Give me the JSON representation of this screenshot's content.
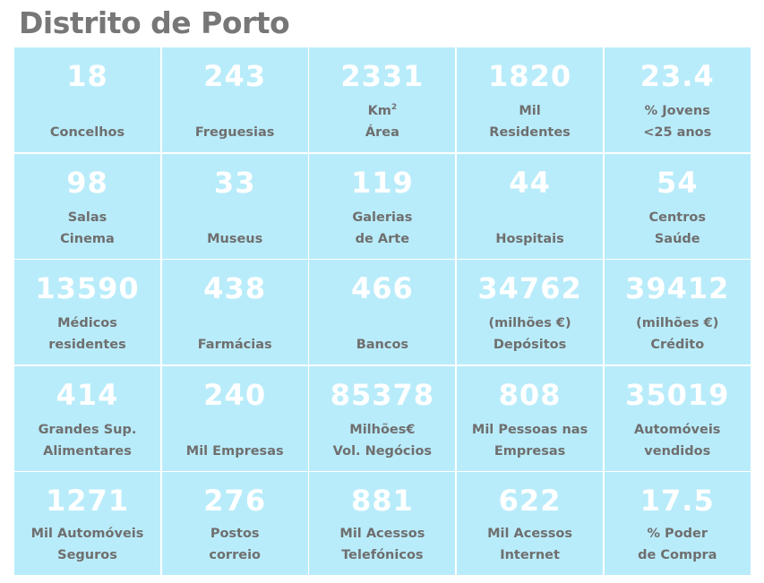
{
  "title": "Distrito de Porto",
  "cells": [
    {
      "value": "18",
      "line1": "",
      "line2": "Concelhos"
    },
    {
      "value": "243",
      "line1": "",
      "line2": "Freguesias"
    },
    {
      "value": "2331",
      "line1": "Km",
      "sup": "2",
      "line2": "Área"
    },
    {
      "value": "1820",
      "line1": "Mil",
      "line2": "Residentes"
    },
    {
      "value": "23.4",
      "line1": "% Jovens",
      "line2": "<25 anos"
    },
    {
      "value": "98",
      "line1": "Salas",
      "line2": "Cinema"
    },
    {
      "value": "33",
      "line1": "",
      "line2": "Museus"
    },
    {
      "value": "119",
      "line1": "Galerias",
      "line2": "de Arte"
    },
    {
      "value": "44",
      "line1": "",
      "line2": "Hospitais"
    },
    {
      "value": "54",
      "line1": "Centros",
      "line2": "Saúde"
    },
    {
      "value": "13590",
      "line1": "Médicos",
      "line2": "residentes"
    },
    {
      "value": "438",
      "line1": "",
      "line2": "Farmácias"
    },
    {
      "value": "466",
      "line1": "",
      "line2": "Bancos"
    },
    {
      "value": "34762",
      "line1": "(milhões €)",
      "line2": "Depósitos"
    },
    {
      "value": "39412",
      "line1": "(milhões €)",
      "line2": "Crédito"
    },
    {
      "value": "414",
      "line1": "Grandes Sup.",
      "line2": "Alimentares"
    },
    {
      "value": "240",
      "line1": "",
      "line2": "Mil Empresas"
    },
    {
      "value": "85378",
      "line1": "Milhões€",
      "line2": "Vol. Negócios"
    },
    {
      "value": "808",
      "line1": "Mil Pessoas nas",
      "line2": "Empresas"
    },
    {
      "value": "35019",
      "line1": "Automóveis",
      "line2": "vendidos"
    },
    {
      "value": "1271",
      "line1": "Mil Automóveis",
      "line2": "Seguros"
    },
    {
      "value": "276",
      "line1": "Postos",
      "line2": "correio"
    },
    {
      "value": "881",
      "line1": "Mil Acessos",
      "line2": "Telefónicos"
    },
    {
      "value": "622",
      "line1": "Mil Acessos",
      "line2": "Internet"
    },
    {
      "value": "17.5",
      "line1": "% Poder",
      "line2": "de Compra"
    }
  ]
}
